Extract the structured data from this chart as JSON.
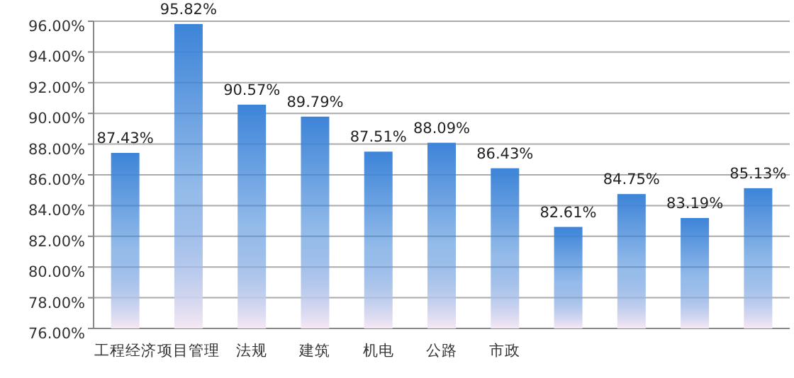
{
  "chart_data": {
    "type": "bar",
    "categories": [
      "工程经济",
      "项目管理",
      "法规",
      "建筑",
      "机电",
      "公路",
      "市政",
      null,
      null,
      null,
      null
    ],
    "values": [
      87.43,
      95.82,
      90.57,
      89.79,
      87.51,
      88.09,
      86.43,
      82.61,
      84.75,
      83.19,
      85.13
    ],
    "value_labels": [
      "87.43%",
      "95.82%",
      "90.57%",
      "89.79%",
      "87.51%",
      "88.09%",
      "86.43%",
      "82.61%",
      "84.75%",
      "83.19%",
      "85.13%"
    ],
    "color": "#3d84d8",
    "ylim": [
      76,
      96
    ],
    "yticks": [
      {
        "value": 76,
        "label": "76.00%"
      },
      {
        "value": 78,
        "label": "78.00%"
      },
      {
        "value": 80,
        "label": "80.00%"
      },
      {
        "value": 82,
        "label": "82.00%"
      },
      {
        "value": 84,
        "label": "84.00%"
      },
      {
        "value": 86,
        "label": "86.00%"
      },
      {
        "value": 88,
        "label": "88.00%"
      },
      {
        "value": 90,
        "label": "90.00%"
      },
      {
        "value": 92,
        "label": "92.00%"
      },
      {
        "value": 94,
        "label": "94.00%"
      },
      {
        "value": 96,
        "label": "96.00%"
      }
    ],
    "grid": "y"
  }
}
